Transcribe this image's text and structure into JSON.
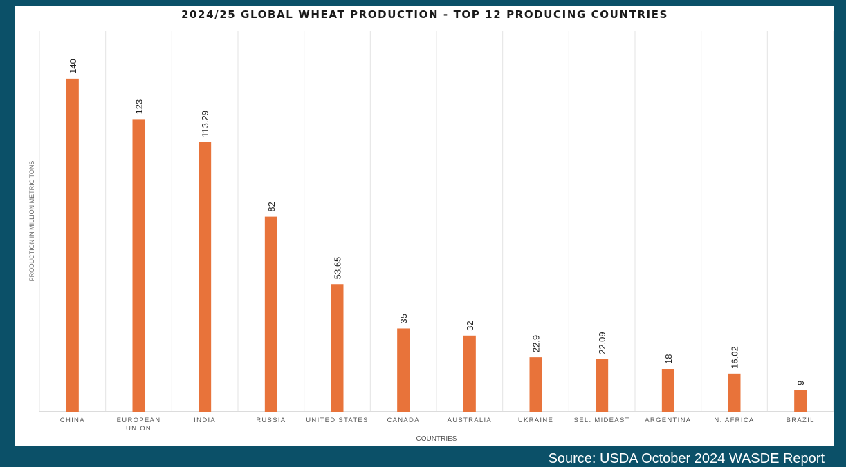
{
  "chart_data": {
    "type": "bar",
    "title": "2024/25 GLOBAL WHEAT PRODUCTION - TOP 12 PRODUCING COUNTRIES",
    "xlabel": "COUNTRIES",
    "ylabel": "PRODUCTION  IN  MILLION  METRIC  TONS",
    "categories": [
      "CHINA",
      "EUROPEAN UNION",
      "INDIA",
      "RUSSIA",
      "UNITED STATES",
      "CANADA",
      "AUSTRALIA",
      "UKRAINE",
      "SEL. MIDEAST",
      "ARGENTINA",
      "N. AFRICA",
      "BRAZIL"
    ],
    "values": [
      140,
      123,
      113.29,
      82,
      53.65,
      35,
      32,
      22.9,
      22.09,
      18,
      16.02,
      9
    ],
    "data_labels": [
      "140",
      "123",
      "113.29",
      "82",
      "53.65",
      "35",
      "32",
      "22.9",
      "22.09",
      "18",
      "16.02",
      "9"
    ],
    "ylim": [
      0,
      160
    ],
    "grid": "vertical category separators",
    "bar_color": "#e8733a",
    "background_color": "#0b5068"
  },
  "source": "Source:  USDA October 2024 WASDE Report"
}
